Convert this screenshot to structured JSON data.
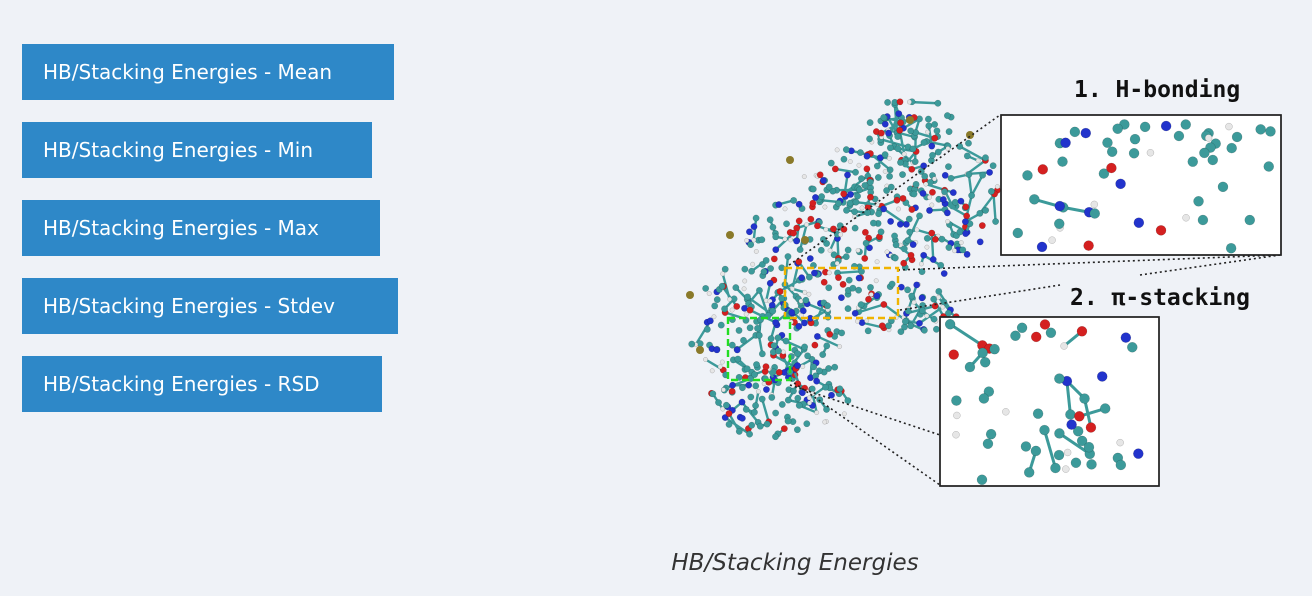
{
  "buttons": [
    {
      "label": "HB/Stacking Energies - Mean"
    },
    {
      "label": "HB/Stacking Energies - Min"
    },
    {
      "label": "HB/Stacking Energies - Max"
    },
    {
      "label": "HB/Stacking Energies - Stdev"
    },
    {
      "label": "HB/Stacking Energies - RSD"
    }
  ],
  "figure": {
    "label_hbond": "1. H-bonding",
    "label_stacking": "2. π-stacking",
    "caption": "HB/Stacking Energies"
  },
  "colors": {
    "button_bg": "#2e88c8",
    "button_text": "#ffffff",
    "page_bg": "#eff2f7",
    "atom_carbon": "#3c9a9a",
    "atom_nitrogen": "#2233cc",
    "atom_oxygen": "#d42020",
    "atom_hydrogen": "#e6e6e6",
    "atom_phosphorus": "#8a7a2a",
    "hbond_box": "#f0b400",
    "stacking_box": "#22dd22"
  }
}
